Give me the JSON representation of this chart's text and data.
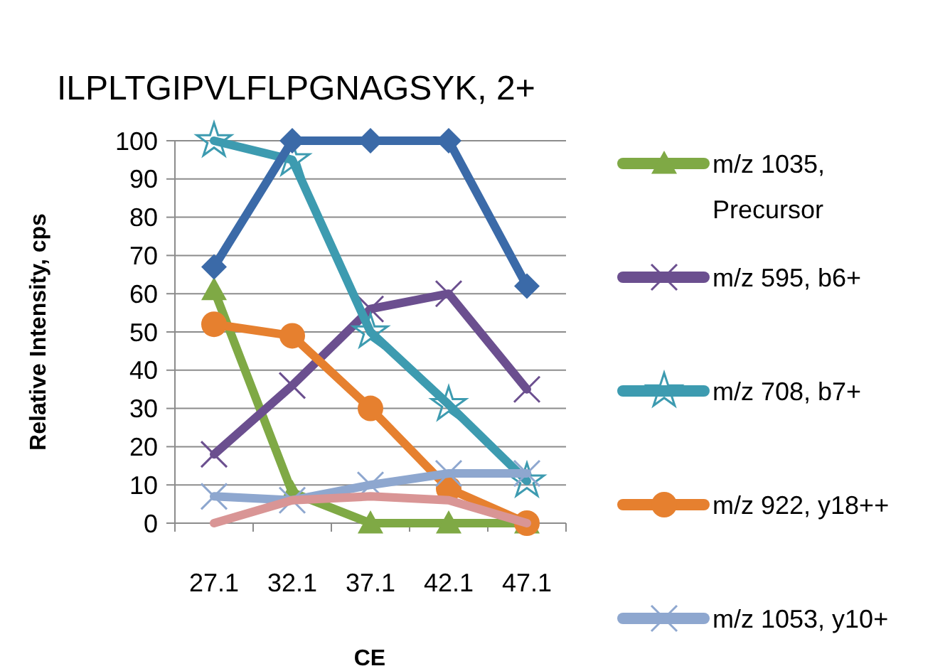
{
  "chart_data": {
    "type": "line",
    "title": "ILPLTGIPVLFLPGNAGSYK, 2+",
    "xlabel": "CE",
    "ylabel": "Relative Intensity, cps",
    "categories": [
      "27.1",
      "32.1",
      "37.1",
      "42.1",
      "47.1"
    ],
    "ylim": [
      0,
      100
    ],
    "yticks": [
      0,
      10,
      20,
      30,
      40,
      50,
      60,
      70,
      80,
      90,
      100
    ],
    "grid": "y",
    "legend": "right",
    "series": [
      {
        "name": "m/z 1035, Precursor",
        "color": "#7fa945",
        "marker": "triangle",
        "values": [
          61,
          8,
          0,
          0,
          0
        ]
      },
      {
        "name": "m/z 595, b6+",
        "color": "#6b4f8f",
        "marker": "cross",
        "values": [
          18,
          36,
          56,
          60,
          35
        ]
      },
      {
        "name": "m/z 708, b7+",
        "color": "#3d9bb0",
        "marker": "star",
        "values": [
          100,
          95,
          50,
          31,
          11
        ]
      },
      {
        "name": "m/z 922, y18++",
        "color": "#e6802f",
        "marker": "circle",
        "values": [
          52,
          49,
          30,
          9,
          0
        ]
      },
      {
        "name": "m/z 1053, y10+",
        "color": "#8ea7cf",
        "marker": "cross",
        "values": [
          7,
          6,
          10,
          13,
          13
        ]
      },
      {
        "color": "#3b6aa8",
        "marker": "diamond",
        "values": [
          67,
          100,
          100,
          100,
          62
        ]
      },
      {
        "color": "#d99595",
        "marker": "none",
        "values": [
          0,
          6,
          7,
          6,
          0
        ]
      }
    ]
  }
}
